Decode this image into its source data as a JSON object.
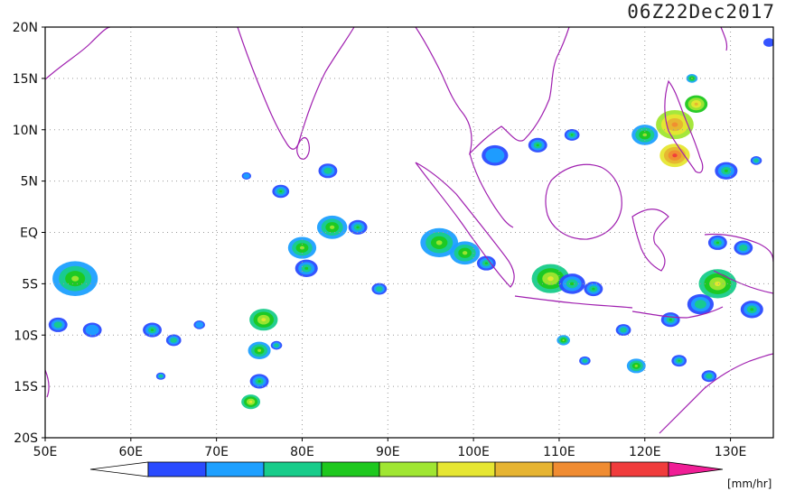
{
  "title": "06Z22Dec2017",
  "lat_labels": [
    "20N",
    "15N",
    "10N",
    "5N",
    "EQ",
    "5S",
    "10S",
    "15S",
    "20S"
  ],
  "lat_values": [
    20,
    15,
    10,
    5,
    0,
    -5,
    -10,
    -15,
    -20
  ],
  "lon_labels": [
    "50E",
    "60E",
    "70E",
    "80E",
    "90E",
    "100E",
    "110E",
    "120E",
    "130E"
  ],
  "lon_values": [
    50,
    60,
    70,
    80,
    90,
    100,
    110,
    120,
    130
  ],
  "extent": {
    "lon_min": 50,
    "lon_max": 135,
    "lat_min": -20,
    "lat_max": 20
  },
  "colorbar": {
    "unit": "[mm/hr]",
    "levels": [
      "0.1",
      "0.5",
      "1",
      "2",
      "3",
      "5",
      "10",
      "20",
      "30",
      "40"
    ],
    "colors": [
      "#2a4bff",
      "#1ea0ff",
      "#18cc8a",
      "#1ec81e",
      "#a0e632",
      "#e6e632",
      "#e6b432",
      "#f08c32",
      "#f03c3c",
      "#f01e96"
    ]
  },
  "chart_data": {
    "type": "heatmap",
    "title": "06Z22Dec2017",
    "xlabel": "",
    "ylabel": "",
    "xlim": [
      50,
      135
    ],
    "ylim": [
      -20,
      20
    ],
    "unit": "mm/hr",
    "grid": true,
    "rain_cells": [
      {
        "lon": 53.5,
        "lat": -4.5,
        "r": 2.4,
        "level": 4
      },
      {
        "lon": 51.5,
        "lat": -9.0,
        "r": 1.0,
        "level": 2
      },
      {
        "lon": 55.5,
        "lat": -9.5,
        "r": 1.0,
        "level": 1
      },
      {
        "lon": 62.5,
        "lat": -9.5,
        "r": 1.0,
        "level": 3
      },
      {
        "lon": 65.0,
        "lat": -10.5,
        "r": 0.8,
        "level": 2
      },
      {
        "lon": 68.0,
        "lat": -9.0,
        "r": 0.6,
        "level": 1
      },
      {
        "lon": 63.5,
        "lat": -14.0,
        "r": 0.5,
        "level": 2
      },
      {
        "lon": 73.5,
        "lat": 5.5,
        "r": 0.5,
        "level": 1
      },
      {
        "lon": 77.5,
        "lat": 4.0,
        "r": 0.9,
        "level": 3
      },
      {
        "lon": 75.5,
        "lat": -8.5,
        "r": 1.5,
        "level": 5
      },
      {
        "lon": 75.0,
        "lat": -11.5,
        "r": 1.2,
        "level": 4
      },
      {
        "lon": 75.0,
        "lat": -14.5,
        "r": 1.0,
        "level": 3
      },
      {
        "lon": 74.0,
        "lat": -16.5,
        "r": 1.0,
        "level": 5
      },
      {
        "lon": 77.0,
        "lat": -11.0,
        "r": 0.6,
        "level": 2
      },
      {
        "lon": 80.0,
        "lat": -1.5,
        "r": 1.5,
        "level": 4
      },
      {
        "lon": 80.5,
        "lat": -3.5,
        "r": 1.2,
        "level": 3
      },
      {
        "lon": 83.5,
        "lat": 0.5,
        "r": 1.6,
        "level": 4
      },
      {
        "lon": 86.5,
        "lat": 0.5,
        "r": 1.0,
        "level": 3
      },
      {
        "lon": 83.0,
        "lat": 6.0,
        "r": 1.0,
        "level": 2
      },
      {
        "lon": 89.0,
        "lat": -5.5,
        "r": 0.8,
        "level": 2
      },
      {
        "lon": 96.0,
        "lat": -1.0,
        "r": 2.0,
        "level": 4
      },
      {
        "lon": 99.0,
        "lat": -2.0,
        "r": 1.6,
        "level": 4
      },
      {
        "lon": 101.5,
        "lat": -3.0,
        "r": 1.0,
        "level": 3
      },
      {
        "lon": 102.5,
        "lat": 7.5,
        "r": 1.4,
        "level": 1
      },
      {
        "lon": 109.0,
        "lat": -4.5,
        "r": 2.0,
        "level": 5
      },
      {
        "lon": 111.5,
        "lat": -5.0,
        "r": 1.4,
        "level": 3
      },
      {
        "lon": 114.0,
        "lat": -5.5,
        "r": 1.0,
        "level": 3
      },
      {
        "lon": 110.5,
        "lat": -10.5,
        "r": 0.7,
        "level": 4
      },
      {
        "lon": 107.5,
        "lat": 8.5,
        "r": 1.0,
        "level": 3
      },
      {
        "lon": 111.5,
        "lat": 9.5,
        "r": 0.8,
        "level": 3
      },
      {
        "lon": 120.0,
        "lat": 9.5,
        "r": 1.4,
        "level": 4
      },
      {
        "lon": 123.5,
        "lat": 10.5,
        "r": 2.0,
        "level": 7
      },
      {
        "lon": 123.5,
        "lat": 7.5,
        "r": 1.6,
        "level": 8
      },
      {
        "lon": 126.0,
        "lat": 12.5,
        "r": 1.2,
        "level": 6
      },
      {
        "lon": 125.5,
        "lat": 15.0,
        "r": 0.6,
        "level": 4
      },
      {
        "lon": 129.5,
        "lat": 6.0,
        "r": 1.2,
        "level": 3
      },
      {
        "lon": 133.0,
        "lat": 7.0,
        "r": 0.6,
        "level": 2
      },
      {
        "lon": 128.5,
        "lat": -1.0,
        "r": 1.0,
        "level": 3
      },
      {
        "lon": 131.5,
        "lat": -1.5,
        "r": 1.0,
        "level": 2
      },
      {
        "lon": 128.5,
        "lat": -5.0,
        "r": 2.0,
        "level": 5
      },
      {
        "lon": 126.5,
        "lat": -7.0,
        "r": 1.4,
        "level": 2
      },
      {
        "lon": 132.5,
        "lat": -7.5,
        "r": 1.2,
        "level": 3
      },
      {
        "lon": 123.0,
        "lat": -8.5,
        "r": 1.0,
        "level": 3
      },
      {
        "lon": 117.5,
        "lat": -9.5,
        "r": 0.8,
        "level": 2
      },
      {
        "lon": 119.0,
        "lat": -13.0,
        "r": 1.0,
        "level": 4
      },
      {
        "lon": 124.0,
        "lat": -12.5,
        "r": 0.8,
        "level": 3
      },
      {
        "lon": 127.5,
        "lat": -14.0,
        "r": 0.8,
        "level": 2
      },
      {
        "lon": 113.0,
        "lat": -12.5,
        "r": 0.6,
        "level": 2
      },
      {
        "lon": 134.5,
        "lat": 18.5,
        "r": 0.6,
        "level": 0
      }
    ]
  }
}
